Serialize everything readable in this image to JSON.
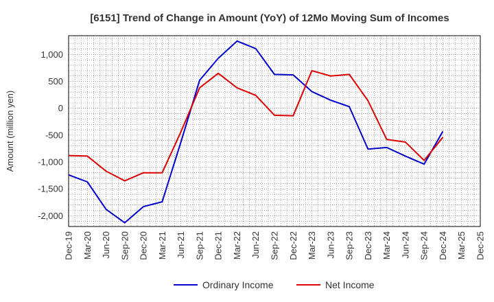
{
  "chart_data": {
    "type": "line",
    "title": "[6151]  Trend of Change in Amount (YoY) of 12Mo Moving Sum of Incomes",
    "xlabel": "",
    "ylabel": "Amount (million yen)",
    "ylim": [
      -2200,
      1350
    ],
    "yticks": [
      1000,
      500,
      0,
      -500,
      -1000,
      -1500,
      -2000
    ],
    "ytick_labels": [
      "1,000",
      "500",
      "0",
      "-500",
      "-1,000",
      "-1,500",
      "-2,000"
    ],
    "categories": [
      "Dec-19",
      "Mar-20",
      "Jun-20",
      "Sep-20",
      "Dec-20",
      "Mar-21",
      "Jun-21",
      "Sep-21",
      "Dec-21",
      "Mar-22",
      "Jun-22",
      "Sep-22",
      "Dec-22",
      "Mar-23",
      "Jun-23",
      "Sep-23",
      "Dec-23",
      "Mar-24",
      "Jun-24",
      "Sep-24",
      "Dec-24",
      "Mar-25",
      "Dec-25"
    ],
    "grid": true,
    "legend_position": "bottom",
    "series": [
      {
        "name": "Ordinary Income",
        "color": "#0000cc",
        "values": [
          -1240,
          -1370,
          -1880,
          -2130,
          -1830,
          -1740,
          -630,
          520,
          930,
          1250,
          1110,
          630,
          620,
          310,
          150,
          30,
          -760,
          -730,
          -890,
          -1040,
          -430,
          null,
          null
        ]
      },
      {
        "name": "Net Income",
        "color": "#dd0000",
        "values": [
          -880,
          -890,
          -1170,
          -1350,
          -1200,
          -1200,
          -440,
          380,
          650,
          380,
          240,
          -130,
          -140,
          700,
          600,
          630,
          140,
          -580,
          -630,
          -970,
          -540,
          null,
          null
        ]
      }
    ]
  }
}
